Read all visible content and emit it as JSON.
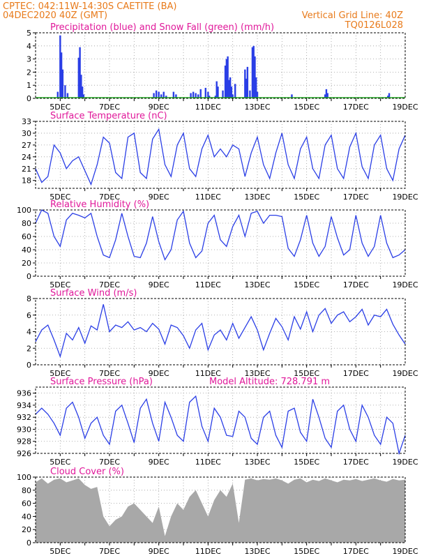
{
  "header": {
    "line1": "CPTEC:   042:11W-14:30S   CAETITE (BA)",
    "line2": "04DEC2020 40Z (GMT)",
    "right1": "Vertical Grid Line: 40Z",
    "right2": "TQ0126L028"
  },
  "colors": {
    "header": "#e87a1a",
    "title": "#e0189a",
    "line": "#2a3ee6",
    "snow": "#22aa22",
    "cloud": "#a8a8a8",
    "grid": "#9a9a9a"
  },
  "chart_data": [
    {
      "type": "bar",
      "title": "Precipitation (blue) and Snow Fall (green) (mm/h)",
      "ylim": [
        0,
        5
      ],
      "yticks": [
        "0",
        "1",
        "2",
        "3",
        "4",
        "5"
      ],
      "xticks": [
        "5DEC",
        "7DEC",
        "9DEC",
        "11DEC",
        "13DEC",
        "15DEC",
        "17DEC",
        "19DEC"
      ],
      "series": [
        {
          "x": [
            4.9,
            5.0,
            5.05,
            5.1,
            5.2,
            5.3,
            5.75,
            5.8,
            5.85,
            5.9,
            5.95,
            8.8,
            8.9,
            9.0,
            9.1,
            9.2,
            9.3,
            9.6,
            9.7,
            10.3,
            10.4,
            10.5,
            10.6,
            10.7,
            10.9,
            11.0,
            11.05,
            11.3,
            11.35,
            11.4,
            11.6,
            11.7,
            11.75,
            11.8,
            11.85,
            11.9,
            11.95,
            12.0,
            12.1,
            12.5,
            12.55,
            12.6,
            12.7,
            12.8,
            12.85,
            12.9,
            12.95,
            13.0,
            14.4,
            15.75,
            15.8,
            15.85,
            18.3,
            18.35
          ],
          "values": [
            0.5,
            4.8,
            3.5,
            2.2,
            1.0,
            0.4,
            3.1,
            3.9,
            1.8,
            0.9,
            0.3,
            0.4,
            0.6,
            0.5,
            0.3,
            0.5,
            0.2,
            0.5,
            0.3,
            0.4,
            0.5,
            0.4,
            0.3,
            0.7,
            0.8,
            0.5,
            0.2,
            0.2,
            1.3,
            0.9,
            0.6,
            2.5,
            3.0,
            3.2,
            1.4,
            1.6,
            0.9,
            0.3,
            1.1,
            2.2,
            1.5,
            2.4,
            0.6,
            3.9,
            4.0,
            3.2,
            1.6,
            0.5,
            0.3,
            0.3,
            0.7,
            0.4,
            0.2,
            0.4
          ]
        }
      ]
    },
    {
      "type": "line",
      "title": "Surface Temperature (nC)",
      "ylim": [
        16,
        33
      ],
      "yticks": [
        "18",
        "21",
        "24",
        "27",
        "30",
        "33"
      ],
      "xticks": [
        "5DEC",
        "7DEC",
        "9DEC",
        "11DEC",
        "13DEC",
        "15DEC",
        "17DEC",
        "19DEC"
      ],
      "series": [
        {
          "x": [
            4,
            4.25,
            4.5,
            4.75,
            5,
            5.25,
            5.5,
            5.75,
            6,
            6.25,
            6.5,
            6.75,
            7,
            7.25,
            7.5,
            7.75,
            8,
            8.25,
            8.5,
            8.75,
            9,
            9.25,
            9.5,
            9.75,
            10,
            10.25,
            10.5,
            10.75,
            11,
            11.25,
            11.5,
            11.75,
            12,
            12.25,
            12.5,
            12.75,
            13,
            13.25,
            13.5,
            13.75,
            14,
            14.25,
            14.5,
            14.75,
            15,
            15.25,
            15.5,
            15.75,
            16,
            16.25,
            16.5,
            16.75,
            17,
            17.25,
            17.5,
            17.75,
            18,
            18.25,
            18.5,
            18.75,
            19
          ],
          "values": [
            21,
            17.5,
            19,
            27,
            25,
            21,
            23,
            24,
            20.5,
            17,
            22,
            29,
            27.5,
            20,
            18.5,
            29,
            30,
            20,
            18.5,
            28.5,
            31,
            22,
            19,
            27,
            30,
            21,
            19,
            26,
            29.5,
            24,
            26,
            24,
            27,
            26,
            19,
            25,
            29,
            22,
            18.5,
            25,
            30,
            22,
            18.5,
            26,
            29,
            21,
            18.5,
            27,
            29.5,
            21,
            18.5,
            26.5,
            30,
            21.5,
            18.5,
            27,
            29.5,
            21,
            18,
            26,
            29.5
          ]
        }
      ]
    },
    {
      "type": "line",
      "title": "Relative Humidity (%)",
      "ylim": [
        0,
        100
      ],
      "yticks": [
        "0",
        "20",
        "40",
        "60",
        "80",
        "100"
      ],
      "xticks": [
        "5DEC",
        "7DEC",
        "9DEC",
        "11DEC",
        "13DEC",
        "15DEC",
        "17DEC",
        "19DEC"
      ],
      "series": [
        {
          "x": [
            4,
            4.25,
            4.5,
            4.75,
            5,
            5.25,
            5.5,
            5.75,
            6,
            6.25,
            6.5,
            6.75,
            7,
            7.25,
            7.5,
            7.75,
            8,
            8.25,
            8.5,
            8.75,
            9,
            9.25,
            9.5,
            9.75,
            10,
            10.25,
            10.5,
            10.75,
            11,
            11.25,
            11.5,
            11.75,
            12,
            12.25,
            12.5,
            12.75,
            13,
            13.25,
            13.5,
            13.75,
            14,
            14.25,
            14.5,
            14.75,
            15,
            15.25,
            15.5,
            15.75,
            16,
            16.25,
            16.5,
            16.75,
            17,
            17.25,
            17.5,
            17.75,
            18,
            18.25,
            18.5,
            18.75,
            19
          ],
          "values": [
            80,
            100,
            95,
            60,
            45,
            85,
            95,
            92,
            88,
            95,
            60,
            32,
            28,
            55,
            95,
            60,
            30,
            28,
            50,
            90,
            52,
            25,
            40,
            85,
            98,
            50,
            28,
            38,
            80,
            92,
            55,
            45,
            75,
            92,
            60,
            95,
            98,
            80,
            92,
            92,
            90,
            42,
            30,
            55,
            92,
            50,
            30,
            45,
            90,
            58,
            32,
            40,
            92,
            50,
            30,
            45,
            92,
            50,
            28,
            32,
            40
          ]
        }
      ]
    },
    {
      "type": "line",
      "title": "Surface Wind (m/s)",
      "ylim": [
        0,
        8
      ],
      "yticks": [
        "0",
        "2",
        "4",
        "6",
        "8"
      ],
      "xticks": [
        "5DEC",
        "7DEC",
        "9DEC",
        "11DEC",
        "13DEC",
        "15DEC",
        "17DEC",
        "19DEC"
      ],
      "series": [
        {
          "x": [
            4,
            4.25,
            4.5,
            4.75,
            5,
            5.25,
            5.5,
            5.75,
            6,
            6.25,
            6.5,
            6.75,
            7,
            7.25,
            7.5,
            7.75,
            8,
            8.25,
            8.5,
            8.75,
            9,
            9.25,
            9.5,
            9.75,
            10,
            10.25,
            10.5,
            10.75,
            11,
            11.25,
            11.5,
            11.75,
            12,
            12.25,
            12.5,
            12.75,
            13,
            13.25,
            13.5,
            13.75,
            14,
            14.25,
            14.5,
            14.75,
            15,
            15.25,
            15.5,
            15.75,
            16,
            16.25,
            16.5,
            16.75,
            17,
            17.25,
            17.5,
            17.75,
            18,
            18.25,
            18.5,
            18.75,
            19
          ],
          "values": [
            2.8,
            4.2,
            4.8,
            3.0,
            1.0,
            3.8,
            3.0,
            4.5,
            2.6,
            4.7,
            4.2,
            7.3,
            4.0,
            4.8,
            4.5,
            5.2,
            4.2,
            4.5,
            4.0,
            5.0,
            4.3,
            2.5,
            4.8,
            4.5,
            3.5,
            2.0,
            4.2,
            5.0,
            1.8,
            3.6,
            4.2,
            3.0,
            5.0,
            3.2,
            4.5,
            5.8,
            4.2,
            1.8,
            3.8,
            5.6,
            4.6,
            3.0,
            5.8,
            4.3,
            6.4,
            4.0,
            6.0,
            6.8,
            5.0,
            6.0,
            6.4,
            5.2,
            5.8,
            6.7,
            4.8,
            6.0,
            5.8,
            6.7,
            4.9,
            3.6,
            2.5
          ]
        }
      ]
    },
    {
      "type": "line",
      "title": "Surface Pressure (hPa)",
      "annotation": "Model Altitude: 728.791  m",
      "ylim": [
        926,
        937
      ],
      "yticks": [
        "926",
        "928",
        "930",
        "932",
        "934",
        "936"
      ],
      "xticks": [
        "5DEC",
        "7DEC",
        "9DEC",
        "11DEC",
        "13DEC",
        "15DEC",
        "17DEC",
        "19DEC"
      ],
      "series": [
        {
          "x": [
            4,
            4.25,
            4.5,
            4.75,
            5,
            5.25,
            5.5,
            5.75,
            6,
            6.25,
            6.5,
            6.75,
            7,
            7.25,
            7.5,
            7.75,
            8,
            8.25,
            8.5,
            8.75,
            9,
            9.25,
            9.5,
            9.75,
            10,
            10.25,
            10.5,
            10.75,
            11,
            11.25,
            11.5,
            11.75,
            12,
            12.25,
            12.5,
            12.75,
            13,
            13.25,
            13.5,
            13.75,
            14,
            14.25,
            14.5,
            14.75,
            15,
            15.25,
            15.5,
            15.75,
            16,
            16.25,
            16.5,
            16.75,
            17,
            17.25,
            17.5,
            17.75,
            18,
            18.25,
            18.5,
            18.75,
            19
          ],
          "values": [
            932.5,
            933.5,
            932.5,
            931,
            929,
            933.5,
            934.5,
            932,
            928.5,
            931,
            932,
            929,
            927.5,
            933,
            934,
            931,
            927.8,
            933.5,
            935,
            931,
            928,
            934.5,
            932,
            929,
            928,
            934.5,
            935.5,
            930.5,
            928,
            933.5,
            932,
            929,
            928.8,
            933,
            932,
            928.5,
            927.5,
            932,
            933,
            929,
            927,
            933,
            933.5,
            929.5,
            928,
            935,
            932,
            928.5,
            927,
            933,
            934,
            930,
            928,
            934,
            932,
            929,
            927.5,
            932,
            931,
            926,
            929
          ]
        }
      ]
    },
    {
      "type": "area",
      "title": "Cloud Cover (%)",
      "ylim": [
        0,
        100
      ],
      "yticks": [
        "0",
        "20",
        "40",
        "60",
        "80",
        "100"
      ],
      "xticks": [
        "5DEC",
        "7DEC",
        "9DEC",
        "11DEC",
        "13DEC",
        "15DEC",
        "17DEC",
        "19DEC"
      ],
      "series": [
        {
          "x": [
            4,
            4.25,
            4.5,
            4.75,
            5,
            5.25,
            5.5,
            5.75,
            6,
            6.25,
            6.5,
            6.75,
            7,
            7.25,
            7.5,
            7.75,
            8,
            8.25,
            8.5,
            8.75,
            9,
            9.25,
            9.5,
            9.75,
            10,
            10.25,
            10.5,
            10.75,
            11,
            11.25,
            11.5,
            11.75,
            12,
            12.25,
            12.5,
            12.75,
            13,
            13.25,
            13.5,
            13.75,
            14,
            14.25,
            14.5,
            14.75,
            15,
            15.25,
            15.5,
            15.75,
            16,
            16.25,
            16.5,
            16.75,
            17,
            17.25,
            17.5,
            17.75,
            18,
            18.25,
            18.5,
            18.75,
            19
          ],
          "values": [
            92,
            98,
            90,
            96,
            98,
            92,
            95,
            98,
            88,
            82,
            85,
            40,
            25,
            35,
            40,
            55,
            60,
            50,
            40,
            30,
            55,
            10,
            40,
            60,
            50,
            70,
            80,
            60,
            40,
            65,
            80,
            70,
            90,
            30,
            96,
            98,
            95,
            97,
            96,
            98,
            95,
            90,
            96,
            98,
            92,
            96,
            94,
            98,
            95,
            92,
            96,
            95,
            97,
            94,
            96,
            98,
            95,
            93,
            97,
            95,
            96
          ]
        }
      ]
    }
  ]
}
